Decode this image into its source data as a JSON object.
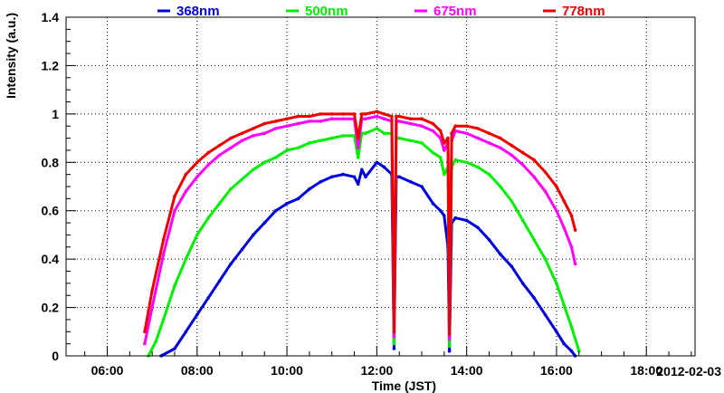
{
  "chart_data": {
    "type": "scatter",
    "xlabel": "Time (JST)",
    "ylabel": "Intensity (a.u.)",
    "date_label": "2012-02-03",
    "xlim": [
      "05:05",
      "19:05"
    ],
    "ylim": [
      0,
      1.4
    ],
    "x_ticks": [
      "06:00",
      "08:00",
      "10:00",
      "12:00",
      "14:00",
      "16:00",
      "18:00"
    ],
    "y_ticks": [
      "0",
      "0.2",
      "0.4",
      "0.6",
      "0.8",
      "1",
      "1.2",
      "1.4"
    ],
    "grid": true,
    "legend_position": "top",
    "series": [
      {
        "name": "368nm",
        "color": "#0000dd",
        "points": [
          [
            "07:12",
            0.0
          ],
          [
            "07:30",
            0.03
          ],
          [
            "07:45",
            0.1
          ],
          [
            "08:00",
            0.17
          ],
          [
            "08:15",
            0.24
          ],
          [
            "08:30",
            0.31
          ],
          [
            "08:45",
            0.38
          ],
          [
            "09:00",
            0.44
          ],
          [
            "09:15",
            0.5
          ],
          [
            "09:30",
            0.55
          ],
          [
            "09:45",
            0.6
          ],
          [
            "10:00",
            0.63
          ],
          [
            "10:15",
            0.65
          ],
          [
            "10:30",
            0.69
          ],
          [
            "10:45",
            0.72
          ],
          [
            "11:00",
            0.74
          ],
          [
            "11:15",
            0.75
          ],
          [
            "11:30",
            0.74
          ],
          [
            "11:35",
            0.71
          ],
          [
            "11:40",
            0.77
          ],
          [
            "11:45",
            0.74
          ],
          [
            "12:00",
            0.8
          ],
          [
            "12:10",
            0.78
          ],
          [
            "12:20",
            0.75
          ],
          [
            "12:23",
            0.03
          ],
          [
            "12:26",
            0.74
          ],
          [
            "12:30",
            0.74
          ],
          [
            "12:45",
            0.72
          ],
          [
            "13:00",
            0.7
          ],
          [
            "13:15",
            0.63
          ],
          [
            "13:25",
            0.6
          ],
          [
            "13:30",
            0.58
          ],
          [
            "13:35",
            0.45
          ],
          [
            "13:37",
            0.02
          ],
          [
            "13:40",
            0.55
          ],
          [
            "13:45",
            0.57
          ],
          [
            "14:00",
            0.56
          ],
          [
            "14:15",
            0.53
          ],
          [
            "14:30",
            0.48
          ],
          [
            "14:45",
            0.42
          ],
          [
            "15:00",
            0.37
          ],
          [
            "15:15",
            0.3
          ],
          [
            "15:30",
            0.24
          ],
          [
            "15:45",
            0.17
          ],
          [
            "16:00",
            0.1
          ],
          [
            "16:10",
            0.05
          ],
          [
            "16:20",
            0.02
          ],
          [
            "16:25",
            0.0
          ]
        ]
      },
      {
        "name": "500nm",
        "color": "#00ee00",
        "points": [
          [
            "06:55",
            0.0
          ],
          [
            "07:05",
            0.06
          ],
          [
            "07:15",
            0.15
          ],
          [
            "07:30",
            0.29
          ],
          [
            "07:45",
            0.4
          ],
          [
            "08:00",
            0.5
          ],
          [
            "08:15",
            0.57
          ],
          [
            "08:30",
            0.63
          ],
          [
            "08:45",
            0.69
          ],
          [
            "09:00",
            0.73
          ],
          [
            "09:15",
            0.77
          ],
          [
            "09:30",
            0.8
          ],
          [
            "09:45",
            0.82
          ],
          [
            "10:00",
            0.85
          ],
          [
            "10:15",
            0.86
          ],
          [
            "10:30",
            0.88
          ],
          [
            "10:45",
            0.89
          ],
          [
            "11:00",
            0.9
          ],
          [
            "11:15",
            0.91
          ],
          [
            "11:30",
            0.91
          ],
          [
            "11:35",
            0.82
          ],
          [
            "11:40",
            0.92
          ],
          [
            "11:45",
            0.92
          ],
          [
            "12:00",
            0.94
          ],
          [
            "12:10",
            0.92
          ],
          [
            "12:20",
            0.92
          ],
          [
            "12:23",
            0.05
          ],
          [
            "12:26",
            0.9
          ],
          [
            "12:30",
            0.9
          ],
          [
            "12:45",
            0.89
          ],
          [
            "13:00",
            0.88
          ],
          [
            "13:15",
            0.84
          ],
          [
            "13:25",
            0.82
          ],
          [
            "13:30",
            0.75
          ],
          [
            "13:35",
            0.78
          ],
          [
            "13:37",
            0.04
          ],
          [
            "13:40",
            0.78
          ],
          [
            "13:45",
            0.81
          ],
          [
            "14:00",
            0.8
          ],
          [
            "14:15",
            0.78
          ],
          [
            "14:30",
            0.75
          ],
          [
            "14:45",
            0.7
          ],
          [
            "15:00",
            0.64
          ],
          [
            "15:15",
            0.56
          ],
          [
            "15:30",
            0.48
          ],
          [
            "15:45",
            0.4
          ],
          [
            "16:00",
            0.3
          ],
          [
            "16:10",
            0.21
          ],
          [
            "16:20",
            0.12
          ],
          [
            "16:30",
            0.02
          ]
        ]
      },
      {
        "name": "675nm",
        "color": "#ff00ff",
        "points": [
          [
            "06:50",
            0.05
          ],
          [
            "07:00",
            0.2
          ],
          [
            "07:15",
            0.42
          ],
          [
            "07:30",
            0.6
          ],
          [
            "07:45",
            0.68
          ],
          [
            "08:00",
            0.74
          ],
          [
            "08:15",
            0.79
          ],
          [
            "08:30",
            0.83
          ],
          [
            "08:45",
            0.86
          ],
          [
            "09:00",
            0.89
          ],
          [
            "09:15",
            0.91
          ],
          [
            "09:30",
            0.92
          ],
          [
            "09:45",
            0.94
          ],
          [
            "10:00",
            0.95
          ],
          [
            "10:15",
            0.96
          ],
          [
            "10:30",
            0.97
          ],
          [
            "10:45",
            0.97
          ],
          [
            "11:00",
            0.98
          ],
          [
            "11:15",
            0.98
          ],
          [
            "11:30",
            0.98
          ],
          [
            "11:35",
            0.86
          ],
          [
            "11:40",
            0.98
          ],
          [
            "11:45",
            0.98
          ],
          [
            "12:00",
            0.99
          ],
          [
            "12:10",
            0.98
          ],
          [
            "12:20",
            0.97
          ],
          [
            "12:23",
            0.08
          ],
          [
            "12:26",
            0.97
          ],
          [
            "12:30",
            0.97
          ],
          [
            "12:45",
            0.96
          ],
          [
            "13:00",
            0.95
          ],
          [
            "13:15",
            0.93
          ],
          [
            "13:25",
            0.9
          ],
          [
            "13:30",
            0.85
          ],
          [
            "13:35",
            0.88
          ],
          [
            "13:37",
            0.07
          ],
          [
            "13:40",
            0.89
          ],
          [
            "13:45",
            0.93
          ],
          [
            "14:00",
            0.92
          ],
          [
            "14:15",
            0.9
          ],
          [
            "14:30",
            0.88
          ],
          [
            "14:45",
            0.86
          ],
          [
            "15:00",
            0.83
          ],
          [
            "15:15",
            0.79
          ],
          [
            "15:30",
            0.74
          ],
          [
            "15:45",
            0.68
          ],
          [
            "16:00",
            0.6
          ],
          [
            "16:10",
            0.53
          ],
          [
            "16:20",
            0.45
          ],
          [
            "16:25",
            0.38
          ]
        ]
      },
      {
        "name": "778nm",
        "color": "#ee0000",
        "points": [
          [
            "06:50",
            0.1
          ],
          [
            "07:00",
            0.27
          ],
          [
            "07:15",
            0.48
          ],
          [
            "07:30",
            0.66
          ],
          [
            "07:45",
            0.75
          ],
          [
            "08:00",
            0.8
          ],
          [
            "08:15",
            0.84
          ],
          [
            "08:30",
            0.87
          ],
          [
            "08:45",
            0.9
          ],
          [
            "09:00",
            0.92
          ],
          [
            "09:15",
            0.94
          ],
          [
            "09:30",
            0.96
          ],
          [
            "09:45",
            0.97
          ],
          [
            "10:00",
            0.98
          ],
          [
            "10:15",
            0.99
          ],
          [
            "10:30",
            0.99
          ],
          [
            "10:45",
            1.0
          ],
          [
            "11:00",
            1.0
          ],
          [
            "11:15",
            1.0
          ],
          [
            "11:30",
            1.0
          ],
          [
            "11:35",
            0.9
          ],
          [
            "11:40",
            1.0
          ],
          [
            "11:45",
            1.0
          ],
          [
            "12:00",
            1.01
          ],
          [
            "12:10",
            1.0
          ],
          [
            "12:20",
            0.99
          ],
          [
            "12:23",
            0.1
          ],
          [
            "12:26",
            0.99
          ],
          [
            "12:30",
            0.99
          ],
          [
            "12:45",
            0.98
          ],
          [
            "13:00",
            0.98
          ],
          [
            "13:15",
            0.96
          ],
          [
            "13:25",
            0.93
          ],
          [
            "13:30",
            0.88
          ],
          [
            "13:35",
            0.9
          ],
          [
            "13:37",
            0.09
          ],
          [
            "13:40",
            0.92
          ],
          [
            "13:45",
            0.95
          ],
          [
            "14:00",
            0.95
          ],
          [
            "14:15",
            0.94
          ],
          [
            "14:30",
            0.92
          ],
          [
            "14:45",
            0.9
          ],
          [
            "15:00",
            0.87
          ],
          [
            "15:15",
            0.84
          ],
          [
            "15:30",
            0.81
          ],
          [
            "15:45",
            0.76
          ],
          [
            "16:00",
            0.7
          ],
          [
            "16:10",
            0.64
          ],
          [
            "16:20",
            0.58
          ],
          [
            "16:25",
            0.52
          ]
        ]
      }
    ]
  }
}
